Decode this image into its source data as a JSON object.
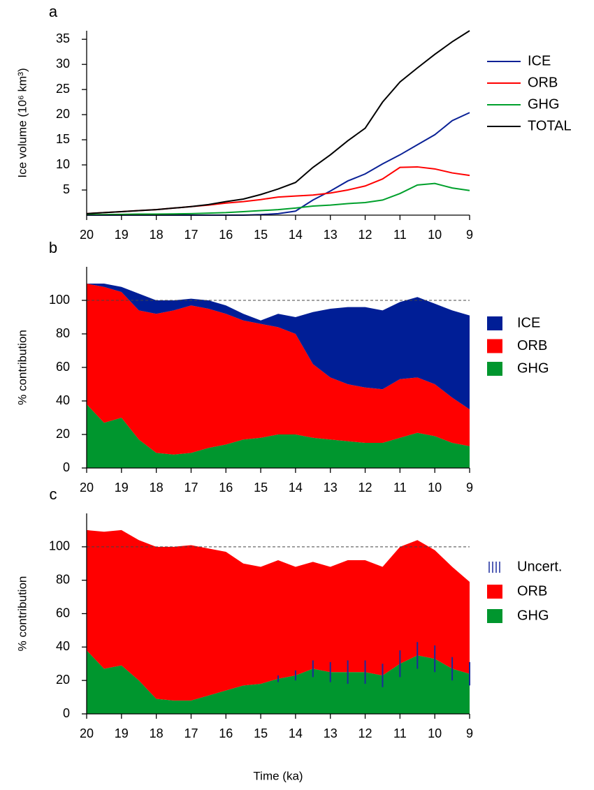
{
  "chart_data": [
    {
      "type": "line",
      "title": "a",
      "ylabel": "Ice volume (10⁶ km³)",
      "x": [
        20,
        19.5,
        19,
        18.5,
        18,
        17.5,
        17,
        16.5,
        16,
        15.5,
        15,
        14.5,
        14,
        13.5,
        13,
        12.5,
        12,
        11.5,
        11,
        10.5,
        10,
        9.5,
        9
      ],
      "xlim": [
        20,
        9
      ],
      "xticks": [
        20,
        19,
        18,
        17,
        16,
        15,
        14,
        13,
        12,
        11,
        10,
        9
      ],
      "ylim": [
        0,
        36.7
      ],
      "yticks": [
        5,
        10,
        15,
        20,
        25,
        30,
        35
      ],
      "series": [
        {
          "name": "ICE",
          "color": "#0a2196",
          "values": [
            0,
            0,
            0,
            0,
            0,
            0,
            0,
            0,
            0,
            0,
            0.1,
            0.3,
            0.8,
            3.0,
            4.8,
            6.8,
            8.2,
            10.2,
            12,
            14,
            16,
            18.8,
            20.4
          ]
        },
        {
          "name": "ORB",
          "color": "#ff0000",
          "values": [
            0.3,
            0.5,
            0.7,
            0.9,
            1.1,
            1.4,
            1.7,
            2.0,
            2.4,
            2.7,
            3.1,
            3.6,
            3.8,
            4.0,
            4.4,
            5.0,
            5.8,
            7.2,
            9.5,
            9.6,
            9.2,
            8.4,
            7.9
          ]
        },
        {
          "name": "GHG",
          "color": "#00a02c",
          "values": [
            0.1,
            0.1,
            0.15,
            0.2,
            0.2,
            0.25,
            0.3,
            0.4,
            0.5,
            0.7,
            0.9,
            1.1,
            1.4,
            1.8,
            2.0,
            2.3,
            2.5,
            3.0,
            4.3,
            6.0,
            6.3,
            5.4,
            4.9
          ]
        },
        {
          "name": "TOTAL",
          "color": "#000000",
          "values": [
            0.3,
            0.5,
            0.7,
            0.9,
            1.1,
            1.4,
            1.7,
            2.1,
            2.7,
            3.2,
            4.1,
            5.2,
            6.5,
            9.5,
            12,
            14.8,
            17.3,
            22.5,
            26.5,
            29.3,
            32,
            34.5,
            36.7
          ]
        }
      ]
    },
    {
      "type": "area",
      "stacked": true,
      "title": "b",
      "ylabel": "% contribution",
      "hline": 100,
      "x": [
        20,
        19.5,
        19,
        18.5,
        18,
        17.5,
        17,
        16.5,
        16,
        15.5,
        15,
        14.5,
        14,
        13.5,
        13,
        12.5,
        12,
        11.5,
        11,
        10.5,
        10,
        9.5,
        9
      ],
      "xlim": [
        20,
        9
      ],
      "xticks": [
        20,
        19,
        18,
        17,
        16,
        15,
        14,
        13,
        12,
        11,
        10,
        9
      ],
      "ylim": [
        0,
        120
      ],
      "yticks": [
        0,
        20,
        40,
        60,
        80,
        100
      ],
      "series": [
        {
          "name": "GHG",
          "color": "#00962e",
          "values": [
            38,
            27,
            30,
            17,
            9,
            8,
            9,
            12,
            14,
            17,
            18,
            20,
            20,
            18,
            17,
            16,
            15,
            15,
            18,
            21,
            19,
            15,
            13
          ]
        },
        {
          "name": "ORB",
          "color": "#ff0000",
          "values": [
            72,
            81,
            75,
            77,
            83,
            86,
            88,
            83,
            78,
            71,
            68,
            64,
            60,
            44,
            37,
            34,
            33,
            32,
            35,
            33,
            31,
            27,
            22
          ]
        },
        {
          "name": "ICE",
          "color": "#001e96",
          "values": [
            0,
            2,
            3,
            10,
            8,
            6,
            4,
            5,
            5,
            4,
            2,
            8,
            10,
            31,
            41,
            46,
            48,
            47,
            46,
            48,
            48,
            52,
            56
          ]
        }
      ]
    },
    {
      "type": "area",
      "stacked": true,
      "title": "c",
      "ylabel": "% contribution",
      "xlabel": "Time (ka)",
      "hline": 100,
      "x": [
        20,
        19.5,
        19,
        18.5,
        18,
        17.5,
        17,
        16.5,
        16,
        15.5,
        15,
        14.5,
        14,
        13.5,
        13,
        12.5,
        12,
        11.5,
        11,
        10.5,
        10,
        9.5,
        9
      ],
      "xlim": [
        20,
        9
      ],
      "xticks": [
        20,
        19,
        18,
        17,
        16,
        15,
        14,
        13,
        12,
        11,
        10,
        9
      ],
      "ylim": [
        0,
        120
      ],
      "yticks": [
        0,
        20,
        40,
        60,
        80,
        100
      ],
      "series": [
        {
          "name": "GHG",
          "color": "#00962e",
          "values": [
            38,
            27,
            29,
            20,
            9,
            8,
            8,
            11,
            14,
            17,
            18,
            21,
            23,
            27,
            25,
            25,
            25,
            23,
            30,
            35,
            33,
            27,
            24
          ]
        },
        {
          "name": "ORB",
          "color": "#ff0000",
          "values": [
            72,
            82,
            81,
            84,
            91,
            92,
            93,
            88,
            83,
            73,
            70,
            71,
            65,
            64,
            63,
            67,
            67,
            65,
            70,
            69,
            65,
            61,
            55
          ]
        },
        {
          "name": "Uncert.",
          "color": "#1a2a9e",
          "style": "errorbar",
          "values": [
            null,
            null,
            null,
            null,
            null,
            null,
            null,
            null,
            null,
            null,
            null,
            2,
            3,
            5,
            6,
            7,
            7,
            7,
            8,
            8,
            8,
            7,
            7
          ]
        }
      ]
    }
  ]
}
